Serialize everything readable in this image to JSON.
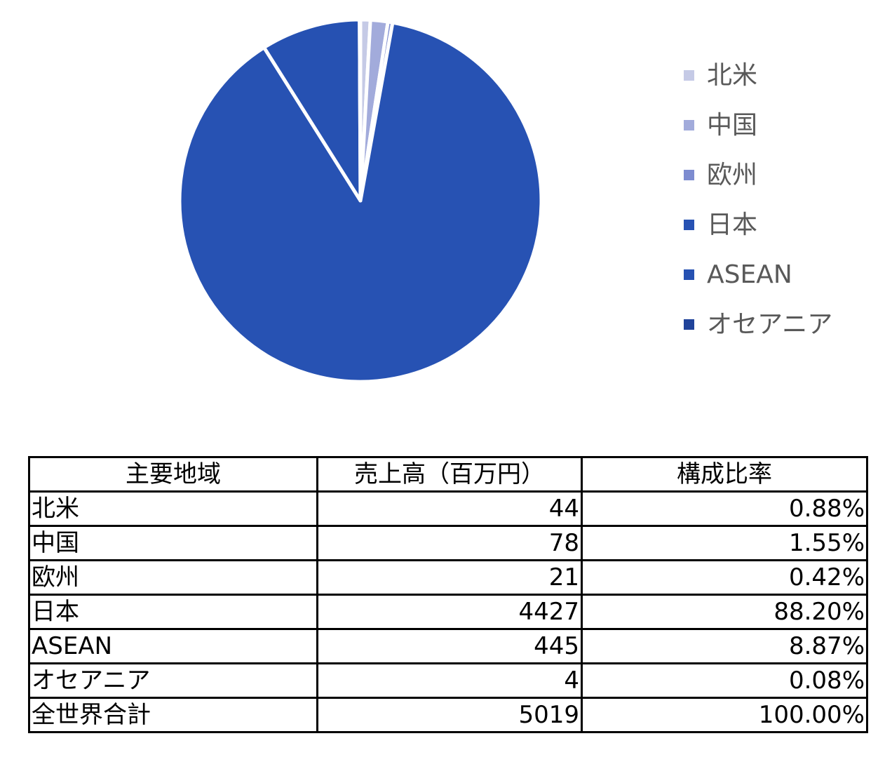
{
  "chart_data": {
    "type": "pie",
    "categories": [
      "北米",
      "中国",
      "欧州",
      "日本",
      "ASEAN",
      "オセアニア"
    ],
    "values": [
      44,
      78,
      21,
      4427,
      445,
      4
    ],
    "colors": [
      "#C5CAE6",
      "#A2ABDB",
      "#7D8CD0",
      "#2752B3",
      "#2651B2",
      "#20439A"
    ],
    "legend_position": "right",
    "start_angle_deg": 0,
    "direction": "clockwise"
  },
  "legend": {
    "items": [
      {
        "label": "北米",
        "color": "#C5CAE6"
      },
      {
        "label": "中国",
        "color": "#A2ABDB"
      },
      {
        "label": "欧州",
        "color": "#7D8CD0"
      },
      {
        "label": "日本",
        "color": "#2752B3"
      },
      {
        "label": "ASEAN",
        "color": "#2651B2"
      },
      {
        "label": "オセアニア",
        "color": "#20439A"
      }
    ]
  },
  "table": {
    "headers": [
      "主要地域",
      "売上高（百万円）",
      "構成比率"
    ],
    "rows": [
      {
        "region": "北米",
        "sales": "44",
        "ratio": "0.88%"
      },
      {
        "region": "中国",
        "sales": "78",
        "ratio": "1.55%"
      },
      {
        "region": "欧州",
        "sales": "21",
        "ratio": "0.42%"
      },
      {
        "region": "日本",
        "sales": "4427",
        "ratio": "88.20%"
      },
      {
        "region": "ASEAN",
        "sales": "445",
        "ratio": "8.87%"
      },
      {
        "region": "オセアニア",
        "sales": "4",
        "ratio": "0.08%"
      },
      {
        "region": "全世界合計",
        "sales": "5019",
        "ratio": "100.00%"
      }
    ]
  }
}
